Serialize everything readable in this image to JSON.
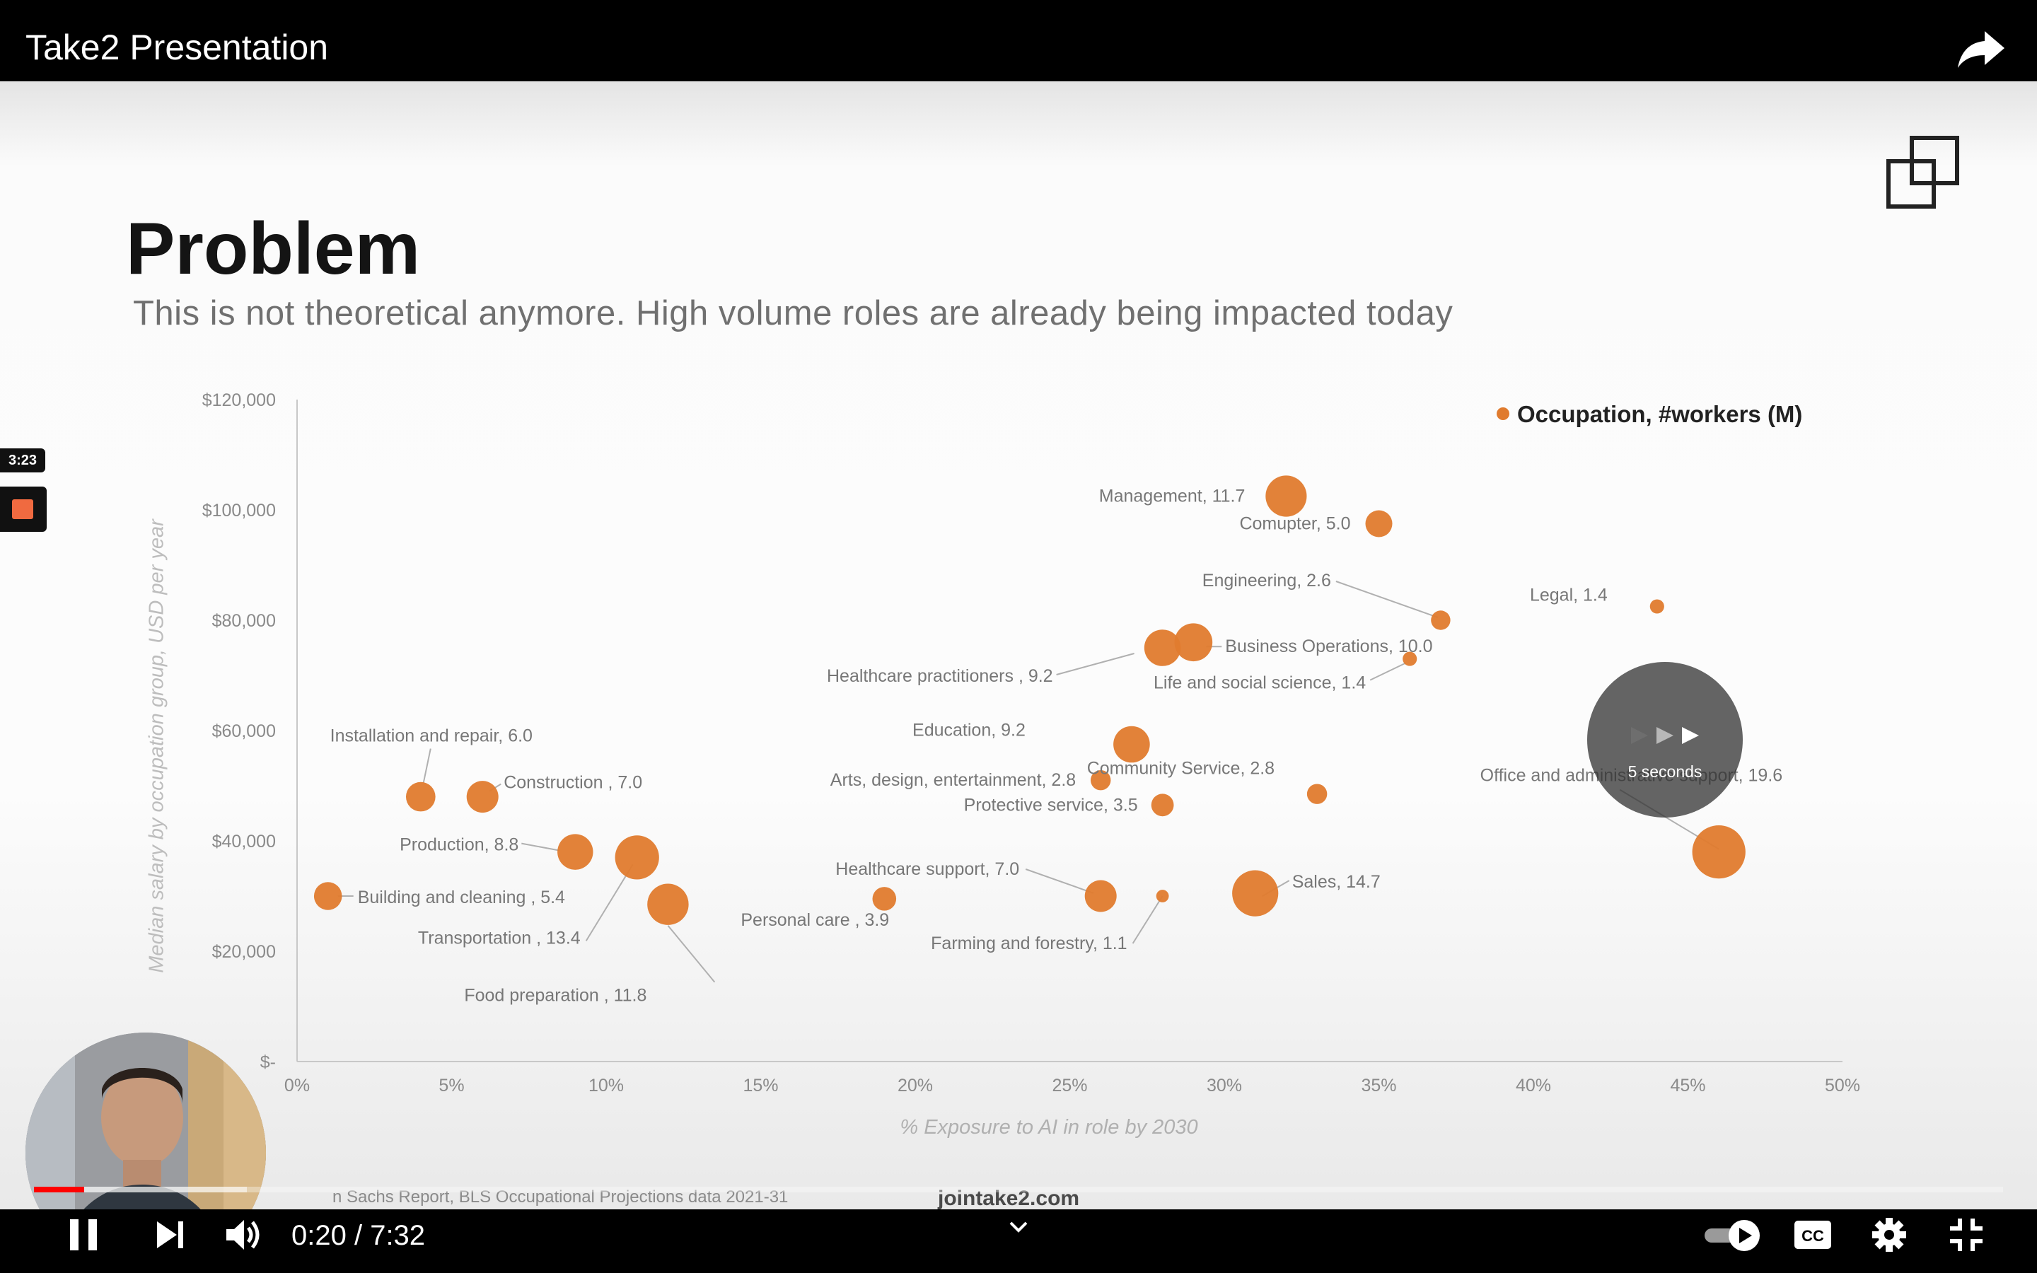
{
  "app": {
    "title": "Take2 Presentation"
  },
  "slide": {
    "title": "Problem",
    "subtitle": "This is not theoretical anymore. High volume roles are already being impacted today",
    "source_note": "n Sachs Report, BLS Occupational Projections data 2021-31",
    "url": "jointake2.com"
  },
  "chart_data": {
    "type": "scatter",
    "variant": "bubble",
    "xlabel": "% Exposure to AI in role by 2030",
    "ylabel": "Median salary by occupation group, USD per year",
    "xlim": [
      0,
      50
    ],
    "ylim": [
      0,
      120000
    ],
    "x_ticks": [
      "0%",
      "5%",
      "10%",
      "15%",
      "20%",
      "25%",
      "30%",
      "35%",
      "40%",
      "45%",
      "50%"
    ],
    "y_ticks": [
      "$-",
      "$20,000",
      "$40,000",
      "$60,000",
      "$80,000",
      "$100,000",
      "$120,000"
    ],
    "legend": {
      "label": "Occupation, #workers (M)",
      "position": "top-right"
    },
    "bubble_color": "#e07b2e",
    "series": [
      {
        "name": "Occupation, #workers (M)",
        "points": [
          {
            "label": "Management, 11.7",
            "x": 32,
            "y": 102500,
            "size": 11.7
          },
          {
            "label": "Comupter, 5.0",
            "x": 35,
            "y": 97500,
            "size": 5.0
          },
          {
            "label": "Engineering, 2.6",
            "x": 37,
            "y": 80000,
            "size": 2.6
          },
          {
            "label": "Legal, 1.4",
            "x": 44,
            "y": 82500,
            "size": 1.4
          },
          {
            "label": "Business Operations, 10.0",
            "x": 29,
            "y": 76000,
            "size": 10.0
          },
          {
            "label": "Healthcare practitioners , 9.2",
            "x": 28,
            "y": 75000,
            "size": 9.2
          },
          {
            "label": "Life and social science, 1.4",
            "x": 36,
            "y": 73000,
            "size": 1.4
          },
          {
            "label": "Education, 9.2",
            "x": 27,
            "y": 57500,
            "size": 9.2
          },
          {
            "label": "Arts, design, entertainment, 2.8",
            "x": 26,
            "y": 51000,
            "size": 2.8
          },
          {
            "label": "Community Service, 2.8",
            "x": 33,
            "y": 48500,
            "size": 2.8
          },
          {
            "label": "Protective service, 3.5",
            "x": 28,
            "y": 46500,
            "size": 3.5
          },
          {
            "label": "Office and administrative support, 19.6",
            "x": 46,
            "y": 38000,
            "size": 19.6
          },
          {
            "label": "Installation and repair, 6.0",
            "x": 4,
            "y": 48000,
            "size": 6.0
          },
          {
            "label": "Construction , 7.0",
            "x": 6,
            "y": 48000,
            "size": 7.0
          },
          {
            "label": "Production, 8.8",
            "x": 9,
            "y": 38000,
            "size": 8.8
          },
          {
            "label": "Building and cleaning , 5.4",
            "x": 1,
            "y": 30000,
            "size": 5.4
          },
          {
            "label": "Transportation , 13.4",
            "x": 11,
            "y": 37000,
            "size": 13.4
          },
          {
            "label": "Food preparation , 11.8",
            "x": 12,
            "y": 28500,
            "size": 11.8
          },
          {
            "label": "Personal care , 3.9",
            "x": 19,
            "y": 29500,
            "size": 3.9
          },
          {
            "label": "Healthcare support, 7.0",
            "x": 26,
            "y": 30000,
            "size": 7.0
          },
          {
            "label": "Farming and forestry, 1.1",
            "x": 28,
            "y": 30000,
            "size": 1.1
          },
          {
            "label": "Sales, 14.7",
            "x": 31,
            "y": 30500,
            "size": 14.7
          }
        ]
      }
    ]
  },
  "overlay": {
    "skip_label": "5 seconds",
    "chapter_time": "3:23"
  },
  "player": {
    "time": "0:20 / 7:32",
    "played_fraction": 0.0254,
    "buffered_fraction": 0.108,
    "icons": [
      "share-icon",
      "pip-icon",
      "pause-icon",
      "next-icon",
      "volume-icon",
      "chevron-down-icon",
      "autoplay-toggle",
      "captions-icon",
      "settings-icon",
      "exit-fullscreen-icon"
    ]
  }
}
